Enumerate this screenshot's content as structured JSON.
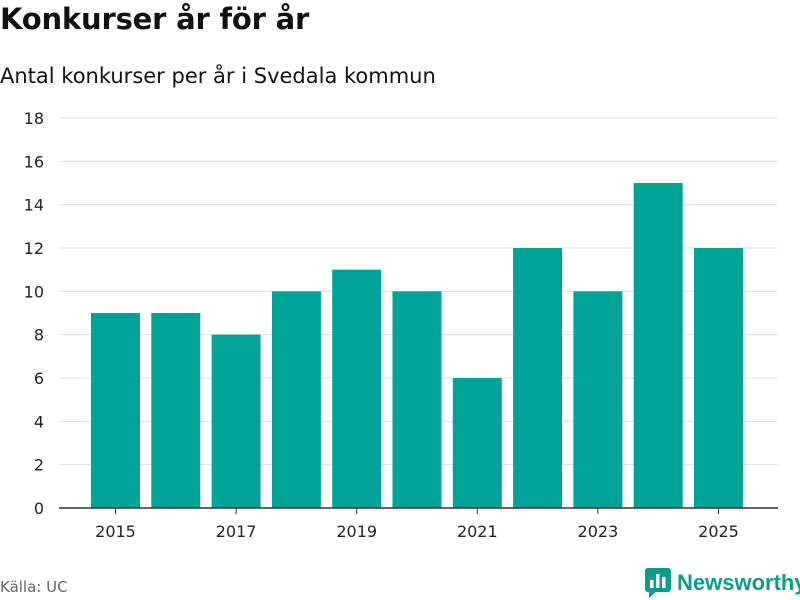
{
  "header": {
    "title": "Konkurser år för år",
    "subtitle": "Antal konkurser per år i Svedala kommun"
  },
  "footer": {
    "source": "Källa: UC",
    "brand": "Newsworthy"
  },
  "colors": {
    "bar": "#00a398",
    "grid": "#e0e0e0",
    "axis": "#333333",
    "brand": "#0b9c8e"
  },
  "icons": {
    "brand": "bar-chart-speech-bubble-icon"
  },
  "chart_data": {
    "type": "bar",
    "title": "Konkurser år för år",
    "subtitle": "Antal konkurser per år i Svedala kommun",
    "xlabel": "",
    "ylabel": "",
    "categories": [
      "2015",
      "2016",
      "2017",
      "2018",
      "2019",
      "2020",
      "2021",
      "2022",
      "2023",
      "2024",
      "2025"
    ],
    "values": [
      9,
      9,
      8,
      10,
      11,
      10,
      6,
      12,
      10,
      15,
      12
    ],
    "x_tick_labels": [
      "2015",
      "2017",
      "2019",
      "2021",
      "2023",
      "2025"
    ],
    "y_ticks": [
      0,
      2,
      4,
      6,
      8,
      10,
      12,
      14,
      16,
      18
    ],
    "ylim": [
      0,
      18
    ],
    "grid": true,
    "legend": "none"
  }
}
